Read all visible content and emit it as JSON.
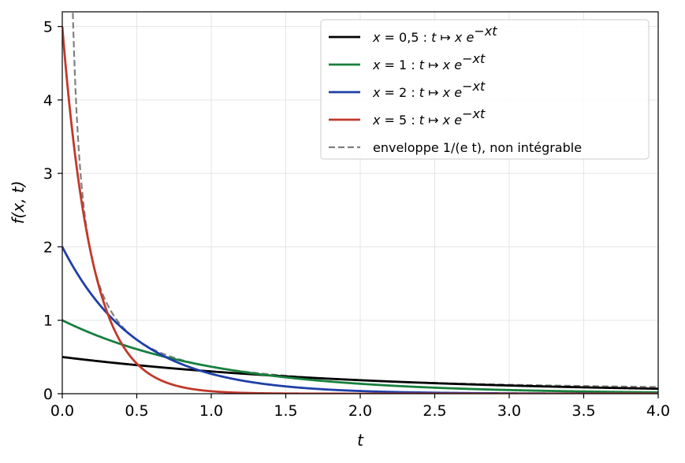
{
  "chart_data": {
    "type": "line",
    "xlabel": "t",
    "ylabel": "f(x, t)",
    "xlim": [
      0,
      4
    ],
    "ylim": [
      0,
      5.2
    ],
    "grid": true,
    "legend_placement": "top-right",
    "x_ticks": [
      "0.0",
      "0.5",
      "1.0",
      "1.5",
      "2.0",
      "2.5",
      "3.0",
      "3.5",
      "4.0"
    ],
    "y_ticks": [
      "0",
      "1",
      "2",
      "3",
      "4",
      "5"
    ],
    "series": [
      {
        "name": "x = 0,5 : t ↦ x e^{−xt}",
        "x_param": 0.5,
        "formula": "x * exp(-x t)",
        "color": "#000000",
        "dashed": false
      },
      {
        "name": "x = 1 : t ↦ x e^{−xt}",
        "x_param": 1,
        "formula": "x * exp(-x t)",
        "color": "#17803d",
        "dashed": false
      },
      {
        "name": "x = 2 : t ↦ x e^{−xt}",
        "x_param": 2,
        "formula": "x * exp(-x t)",
        "color": "#1f3fa8",
        "dashed": false
      },
      {
        "name": "x = 5 : t ↦ x e^{−xt}",
        "x_param": 5,
        "formula": "x * exp(-x t)",
        "color": "#c0392b",
        "dashed": false
      },
      {
        "name": "enveloppe 1/(e t), non intégrable",
        "formula": "1 / (e t)",
        "color": "#808080",
        "dashed": true
      }
    ],
    "legend": [
      {
        "pre": "x",
        "mid": " = 0,5 : ",
        "t": "t",
        "arrow": " ↦ ",
        "x": "x",
        "e": " e",
        "sup": "−xt",
        "color": "#000000",
        "dashed": false
      },
      {
        "pre": "x",
        "mid": " = 1 : ",
        "t": "t",
        "arrow": " ↦ ",
        "x": "x",
        "e": " e",
        "sup": "−xt",
        "color": "#17803d",
        "dashed": false
      },
      {
        "pre": "x",
        "mid": " = 2 : ",
        "t": "t",
        "arrow": " ↦ ",
        "x": "x",
        "e": " e",
        "sup": "−xt",
        "color": "#1f3fa8",
        "dashed": false
      },
      {
        "pre": "x",
        "mid": " = 5 : ",
        "t": "t",
        "arrow": " ↦ ",
        "x": "x",
        "e": " e",
        "sup": "−xt",
        "color": "#c0392b",
        "dashed": false
      },
      {
        "text": "enveloppe 1/(e t), non intégrable",
        "color": "#808080",
        "dashed": true
      }
    ]
  }
}
